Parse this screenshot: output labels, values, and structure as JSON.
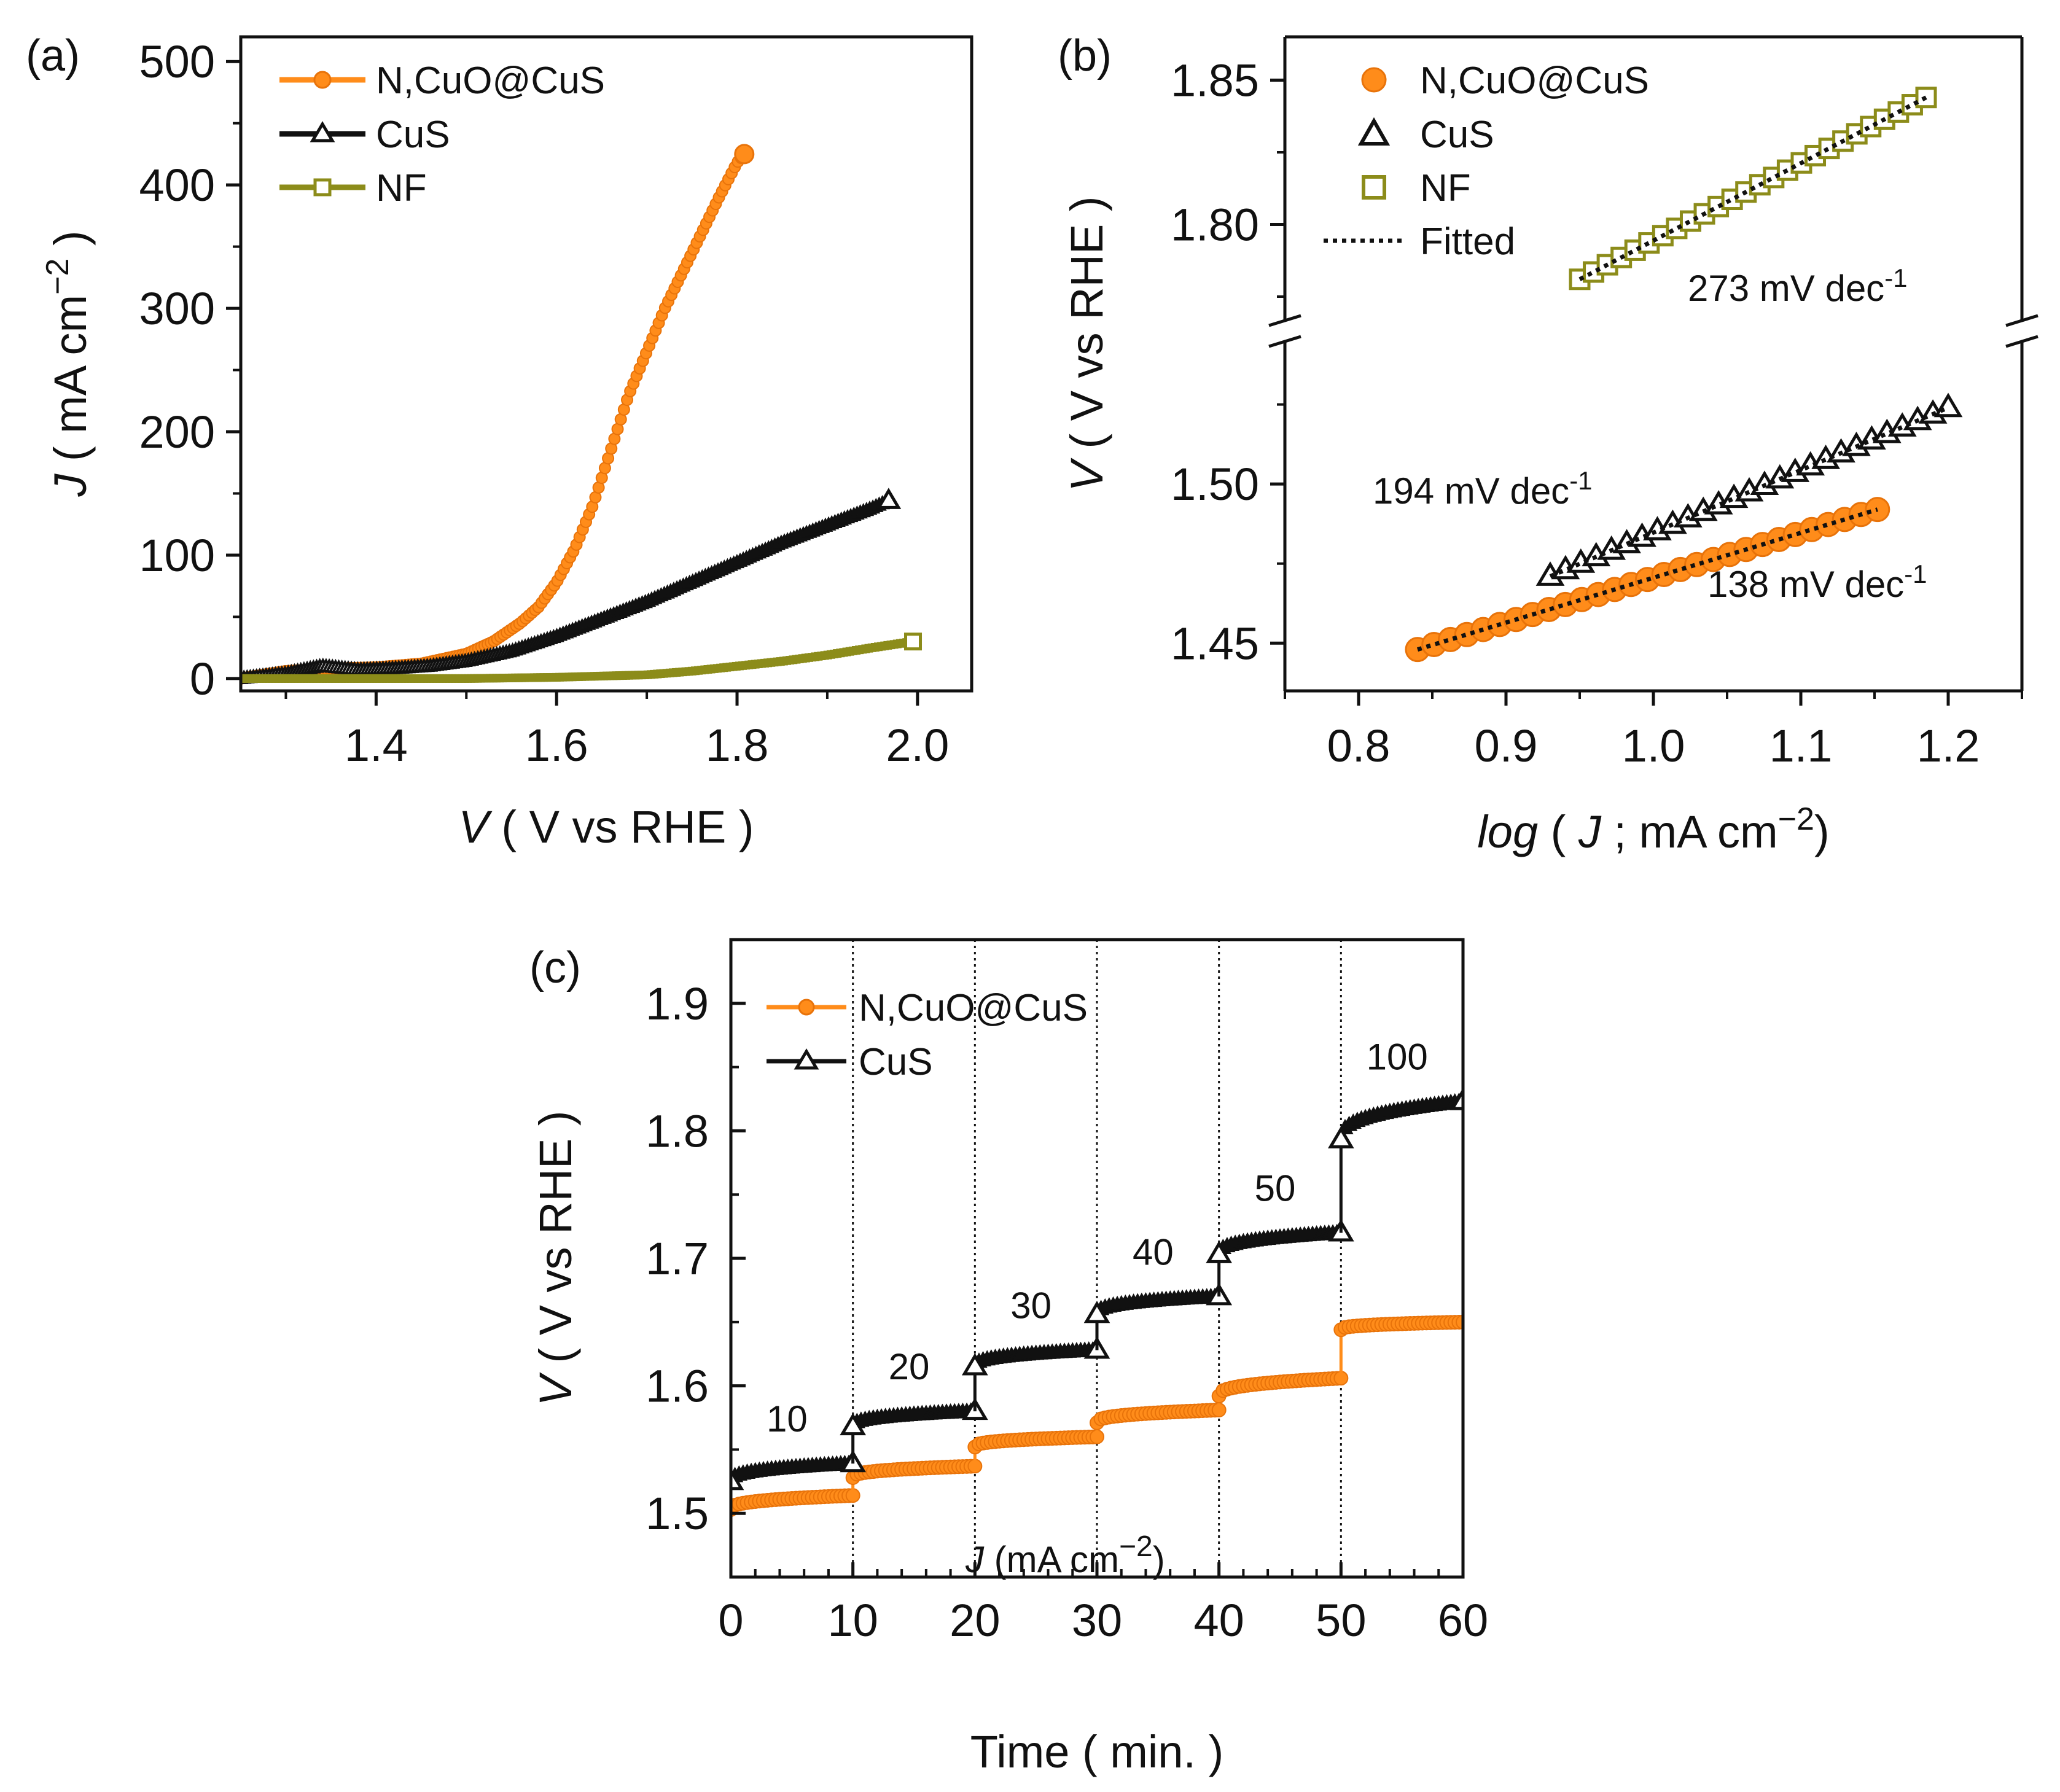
{
  "colors": {
    "orange": "#FF8C1A",
    "orange_dark": "#E8730A",
    "black": "#111111",
    "olive": "#8C8C1A"
  },
  "chart_data": [
    {
      "panel": "(a)",
      "type": "line",
      "title": "",
      "xlabel_italic": "V",
      "xlabel_rest": " ( V vs RHE )",
      "ylabel_italic": "J",
      "ylabel_rest": " ( mA cm",
      "ylabel_sup": "−2",
      "ylabel_close": " )",
      "xlim": [
        1.25,
        2.06
      ],
      "ylim": [
        -10,
        520
      ],
      "xticks": [
        1.4,
        1.6,
        1.8,
        2.0
      ],
      "xtick_labels": [
        "1.4",
        "1.6",
        "1.8",
        "2.0"
      ],
      "yticks": [
        0,
        100,
        200,
        300,
        400,
        500
      ],
      "ytick_labels": [
        "0",
        "100",
        "200",
        "300",
        "400",
        "500"
      ],
      "series": [
        {
          "name": "N,CuO@CuS",
          "marker": "circle",
          "color": "#FF8C1A",
          "x": [
            1.25,
            1.3,
            1.35,
            1.4,
            1.45,
            1.5,
            1.53,
            1.56,
            1.58,
            1.6,
            1.62,
            1.64,
            1.66,
            1.68,
            1.7,
            1.72,
            1.74,
            1.76,
            1.78,
            1.8,
            1.808
          ],
          "y": [
            0,
            6,
            8,
            9,
            12,
            20,
            30,
            45,
            58,
            78,
            105,
            140,
            185,
            230,
            265,
            300,
            330,
            360,
            390,
            418,
            425
          ]
        },
        {
          "name": "CuS",
          "marker": "triangle",
          "color": "#111111",
          "x": [
            1.25,
            1.3,
            1.34,
            1.38,
            1.42,
            1.46,
            1.5,
            1.55,
            1.6,
            1.65,
            1.7,
            1.75,
            1.8,
            1.85,
            1.9,
            1.95,
            1.968
          ],
          "y": [
            0,
            4,
            10,
            7,
            8,
            10,
            14,
            22,
            34,
            48,
            62,
            78,
            94,
            110,
            124,
            138,
            144
          ]
        },
        {
          "name": "NF",
          "marker": "square",
          "color": "#8C8C1A",
          "x": [
            1.25,
            1.4,
            1.5,
            1.6,
            1.7,
            1.75,
            1.8,
            1.85,
            1.9,
            1.95,
            1.995
          ],
          "y": [
            0,
            0,
            0,
            1,
            3,
            6,
            10,
            14,
            19,
            25,
            30
          ]
        }
      ]
    },
    {
      "panel": "(b)",
      "type": "scatter",
      "title": "",
      "xlabel_italic_a": "log",
      "xlabel_mid": " ( ",
      "xlabel_italic_b": "J",
      "xlabel_rest": " ; mA cm",
      "xlabel_sup": "−2",
      "xlabel_close": ")",
      "ylabel_italic": "V",
      "ylabel_rest": " ( V vs RHE )",
      "xlim": [
        0.75,
        1.25
      ],
      "ylim_lower": [
        1.435,
        1.545
      ],
      "ylim_upper": [
        1.765,
        1.865
      ],
      "axis_break": true,
      "xticks": [
        0.8,
        0.9,
        1.0,
        1.1,
        1.2
      ],
      "xtick_labels": [
        "0.8",
        "0.9",
        "1.0",
        "1.1",
        "1.2"
      ],
      "yticks": [
        1.45,
        1.5,
        1.8,
        1.85
      ],
      "ytick_labels": [
        "1.45",
        "1.50",
        "1.80",
        "1.85"
      ],
      "series": [
        {
          "name": "N,CuO@CuS",
          "marker": "circle",
          "color": "#FF8C1A",
          "x_start": 0.84,
          "x_end": 1.152,
          "y_start": 1.448,
          "y_end": 1.492,
          "points": 29
        },
        {
          "name": "CuS",
          "marker": "triangle",
          "color": "#111111",
          "x_start": 0.93,
          "x_end": 1.2,
          "y_start": 1.471,
          "y_end": 1.524,
          "points": 27
        },
        {
          "name": "NF",
          "marker": "square",
          "color": "#8C8C1A",
          "x_start": 0.95,
          "x_end": 1.185,
          "y_start": 1.781,
          "y_end": 1.844,
          "points": 26
        }
      ],
      "fitted_label": "Fitted",
      "annotations": [
        {
          "text": "273 mV dec",
          "sup": "-1"
        },
        {
          "text": "194 mV dec",
          "sup": "-1"
        },
        {
          "text": "138 mV dec",
          "sup": "-1"
        }
      ]
    },
    {
      "panel": "(c)",
      "type": "line",
      "title": "",
      "xlabel": "Time ( min. )",
      "ylabel_italic": "V",
      "ylabel_rest": " ( V vs RHE )",
      "xlim": [
        0,
        60
      ],
      "ylim": [
        1.45,
        1.95
      ],
      "xticks": [
        0,
        10,
        20,
        30,
        40,
        50,
        60
      ],
      "xtick_labels": [
        "0",
        "10",
        "20",
        "30",
        "40",
        "50",
        "60"
      ],
      "yticks": [
        1.5,
        1.6,
        1.7,
        1.8,
        1.9
      ],
      "ytick_labels": [
        "1.5",
        "1.6",
        "1.7",
        "1.8",
        "1.9"
      ],
      "segment_boundaries": [
        10,
        20,
        30,
        40,
        50
      ],
      "current_steps": [
        "10",
        "20",
        "30",
        "40",
        "50",
        "100"
      ],
      "current_unit_italic": "J",
      "current_unit_rest": " (mA cm",
      "current_unit_sup": "−2",
      "current_unit_close": ")",
      "series": [
        {
          "name": "N,CuO@CuS",
          "marker": "circle",
          "color": "#FF8C1A",
          "segments": [
            {
              "t0": 0,
              "t1": 10,
              "v_start": 1.503,
              "v_end": 1.514
            },
            {
              "t0": 10,
              "t1": 20,
              "v_start": 1.528,
              "v_end": 1.537
            },
            {
              "t0": 20,
              "t1": 30,
              "v_start": 1.552,
              "v_end": 1.56
            },
            {
              "t0": 30,
              "t1": 40,
              "v_start": 1.571,
              "v_end": 1.581
            },
            {
              "t0": 40,
              "t1": 50,
              "v_start": 1.592,
              "v_end": 1.606
            },
            {
              "t0": 50,
              "t1": 60,
              "v_start": 1.644,
              "v_end": 1.65
            }
          ]
        },
        {
          "name": "CuS",
          "marker": "triangle",
          "color": "#111111",
          "segments": [
            {
              "t0": 0,
              "t1": 10,
              "v_start": 1.525,
              "v_end": 1.539
            },
            {
              "t0": 10,
              "t1": 20,
              "v_start": 1.568,
              "v_end": 1.58
            },
            {
              "t0": 20,
              "t1": 30,
              "v_start": 1.615,
              "v_end": 1.628
            },
            {
              "t0": 30,
              "t1": 40,
              "v_start": 1.656,
              "v_end": 1.67
            },
            {
              "t0": 40,
              "t1": 50,
              "v_start": 1.703,
              "v_end": 1.72
            },
            {
              "t0": 50,
              "t1": 60,
              "v_start": 1.793,
              "v_end": 1.823
            }
          ]
        }
      ]
    }
  ]
}
